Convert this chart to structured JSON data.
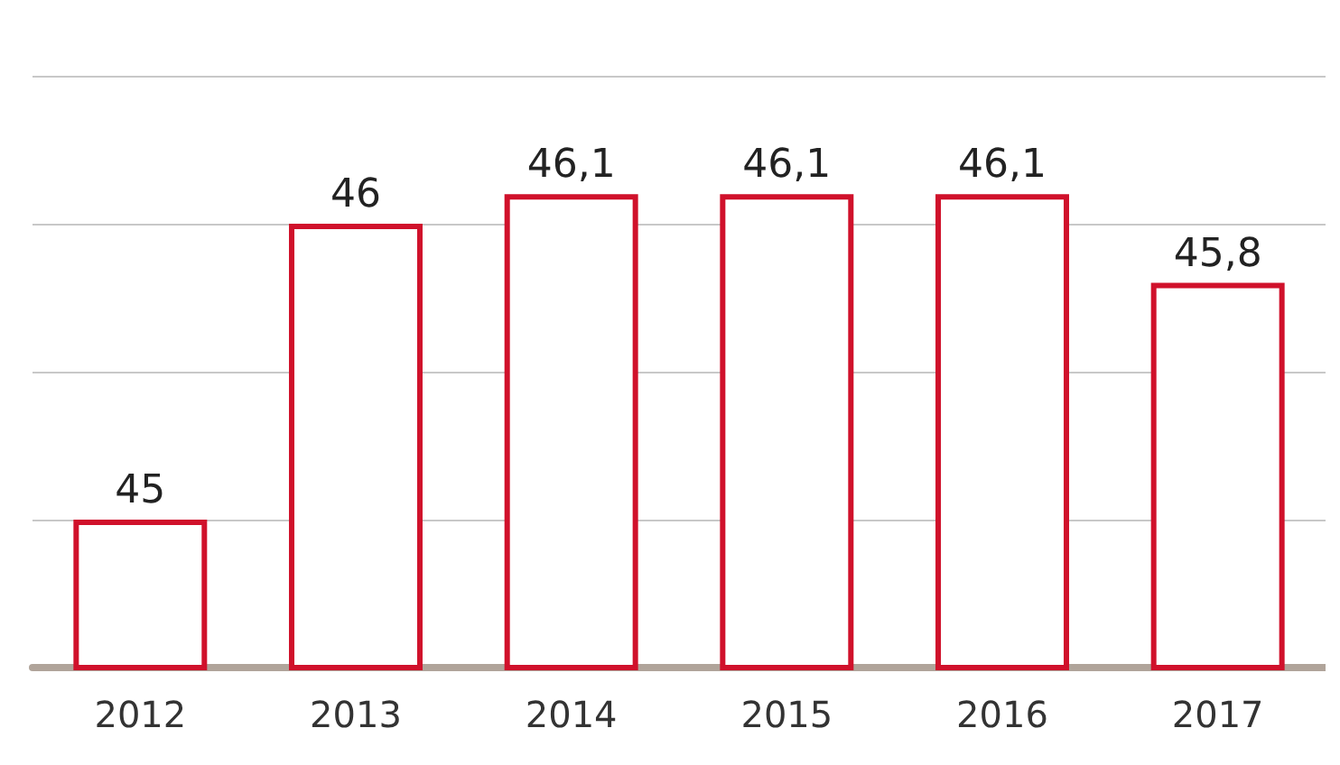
{
  "chart_data": {
    "type": "bar",
    "categories": [
      "2012",
      "2013",
      "2014",
      "2015",
      "2016",
      "2017"
    ],
    "values": [
      45,
      46,
      46.1,
      46.1,
      46.1,
      45.8
    ],
    "value_labels": [
      "45",
      "46",
      "46,1",
      "46,1",
      "46,1",
      "45,8"
    ],
    "color": "#d0112b",
    "ylim": [
      44.5,
      46.5
    ],
    "yticks": [
      {
        "value": 44.5,
        "label": null
      },
      {
        "value": 45,
        "label": null
      },
      {
        "value": 45.5,
        "label": null
      },
      {
        "value": 46,
        "label": null
      },
      {
        "value": 46.5,
        "label": null
      }
    ],
    "grid": "y",
    "tick_labels": "x"
  }
}
